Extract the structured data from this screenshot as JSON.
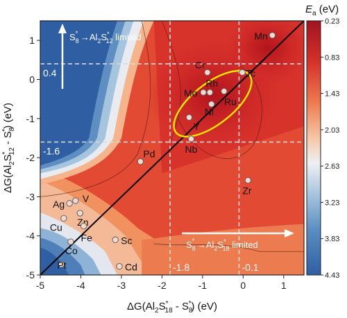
{
  "chart_data": {
    "type": "heatmap",
    "xlim": [
      -5,
      1.5
    ],
    "ylim": [
      -5,
      1.5
    ],
    "x_ticks": [
      "-5",
      "-4",
      "-3",
      "-2",
      "-1",
      "0",
      "1"
    ],
    "y_ticks": [
      "-5",
      "-4",
      "-3",
      "-2",
      "-1",
      "0",
      "1"
    ],
    "xlabel": {
      "pre": "ΔG(Al",
      "s1": "2",
      "mid": "S",
      "sup1": "*",
      "s2": "18",
      "post": " - S",
      "s3": "8",
      "sup2": "*",
      "end": ") (eV)"
    },
    "ylabel": {
      "pre": "ΔG(Al",
      "s1": "2",
      "mid": "S",
      "sup1": "*",
      "s2": "12",
      "post": " - S",
      "s3": "8",
      "sup2": "*",
      "end": ") (eV)"
    },
    "colorbar": {
      "title_main": "E",
      "title_sub": "a",
      "title_unit": " (eV)",
      "ticks": [
        "0.23",
        "0.83",
        "1.43",
        "2.03",
        "2.63",
        "3.23",
        "3.83",
        "4.43"
      ],
      "range": [
        0.23,
        4.43
      ],
      "reversed": true
    },
    "reference_lines": {
      "vertical": [
        -1.8,
        -0.1
      ],
      "horizontal": [
        0.4,
        -1.6
      ],
      "vertical_labels": [
        "-1.8",
        "-0.1"
      ],
      "horizontal_labels": [
        "0.4",
        "-1.6"
      ]
    },
    "diagonal": {
      "from": [
        -5,
        -5
      ],
      "to": [
        1.5,
        1.5
      ]
    },
    "annotations": {
      "top": {
        "a": "S",
        "a_sub": "8",
        "a_sup": "*",
        "arrow": " →",
        "b": "Al",
        "b_sub": "2",
        "b_mid": "S",
        "b_sup": "*",
        "b_sub2": "12",
        "end": " limited"
      },
      "bottom": {
        "a": "S",
        "a_sub": "8",
        "a_sup": "*",
        "arrow": " →",
        "b": "Al",
        "b_sub": "2",
        "b_mid": "S",
        "b_sup": "*",
        "b_sub2": "18",
        "end": " limited"
      }
    },
    "points": [
      {
        "label": "Mn",
        "x": 0.72,
        "y": 1.13
      },
      {
        "label": "Cr",
        "x": -0.88,
        "y": 0.18
      },
      {
        "label": "Tc",
        "x": -0.02,
        "y": 0.18
      },
      {
        "label": "Mo",
        "x": -0.98,
        "y": -0.33
      },
      {
        "label": "Rh",
        "x": -0.82,
        "y": -0.33
      },
      {
        "label": "Ru",
        "x": -0.47,
        "y": -0.3
      },
      {
        "label": "Ni",
        "x": -0.78,
        "y": -0.63
      },
      {
        "label": "Y",
        "x": -1.33,
        "y": -0.97
      },
      {
        "label": "Nb",
        "x": -1.28,
        "y": -1.52
      },
      {
        "label": "Pd",
        "x": -2.53,
        "y": -2.1
      },
      {
        "label": "Zr",
        "x": 0.12,
        "y": -2.58
      },
      {
        "label": "V",
        "x": -4.13,
        "y": -3.1
      },
      {
        "label": "Ag",
        "x": -4.28,
        "y": -3.17
      },
      {
        "label": "Zn",
        "x": -4.02,
        "y": -3.42
      },
      {
        "label": "Cu",
        "x": -4.42,
        "y": -3.55
      },
      {
        "label": "Fe",
        "x": -3.93,
        "y": -3.75
      },
      {
        "label": "Co",
        "x": -4.25,
        "y": -4.15
      },
      {
        "label": "Sc",
        "x": -3.15,
        "y": -4.1
      },
      {
        "label": "Pt",
        "x": -4.48,
        "y": -4.73
      },
      {
        "label": "Cd",
        "x": -3.05,
        "y": -4.78
      }
    ],
    "highlight_ellipse": {
      "cx": -0.75,
      "cy": -0.62,
      "rx": 1.15,
      "ry": 0.52,
      "angle_deg": -38,
      "color": "#f2e600"
    },
    "colors": {
      "dark": "#3a5aa0",
      "low": "#2f63a8",
      "mid": "#cfd8e3",
      "high": "#c8242a",
      "top": "#a01420"
    }
  }
}
